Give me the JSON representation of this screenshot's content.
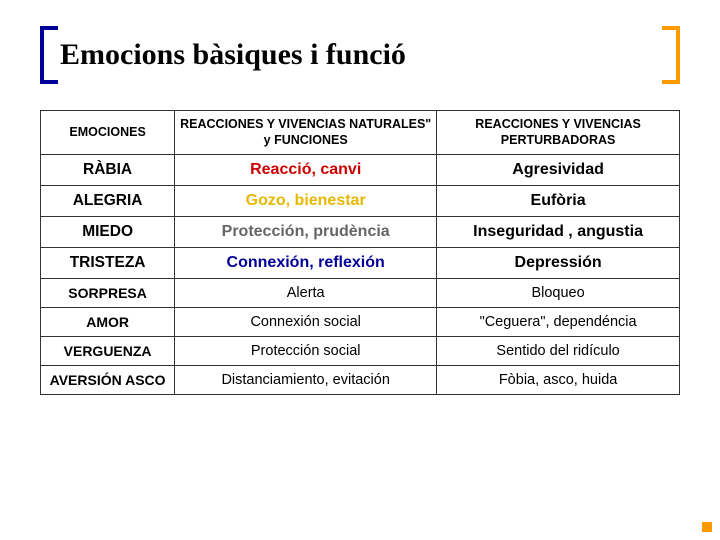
{
  "title": "Emocions bàsiques i funció",
  "colors": {
    "bracket_left": "#000099",
    "bracket_right": "#ff9900",
    "border": "#333333",
    "row_colors": [
      "#cc0000",
      "#e6b800",
      "#666666",
      "#000099",
      "#000000",
      "#000000",
      "#000000",
      "#000000"
    ]
  },
  "headers": [
    "EMOCIONES",
    "REACCIONES Y VIVENCIAS NATURALES\" y FUNCIONES",
    "REACCIONES Y VIVENCIAS PERTURBADORAS"
  ],
  "rows": [
    {
      "emotion": "RÀBIA",
      "natural": "Reacció, canvi",
      "perturb": "Agresividad",
      "bold": true
    },
    {
      "emotion": "ALEGRIA",
      "natural": "Gozo, bienestar",
      "perturb": "Eufòria",
      "bold": true
    },
    {
      "emotion": "MIEDO",
      "natural": "Protección, prudència",
      "perturb": "Inseguridad , angustia",
      "bold": true
    },
    {
      "emotion": "TRISTEZA",
      "natural": "Connexión, reflexión",
      "perturb": "Depressión",
      "bold": true
    },
    {
      "emotion": "SORPRESA",
      "natural": "Alerta",
      "perturb": "Bloqueo",
      "bold": false
    },
    {
      "emotion": "AMOR",
      "natural": "Connexión social",
      "perturb": "\"Ceguera\", dependéncia",
      "bold": false
    },
    {
      "emotion": "VERGUENZA",
      "natural": "Protección social",
      "perturb": "Sentido del ridículo",
      "bold": false
    },
    {
      "emotion": "AVERSIÓN ASCO",
      "natural": "Distanciamiento, evitación",
      "perturb": "Fòbia, asco, huida",
      "bold": false
    }
  ]
}
